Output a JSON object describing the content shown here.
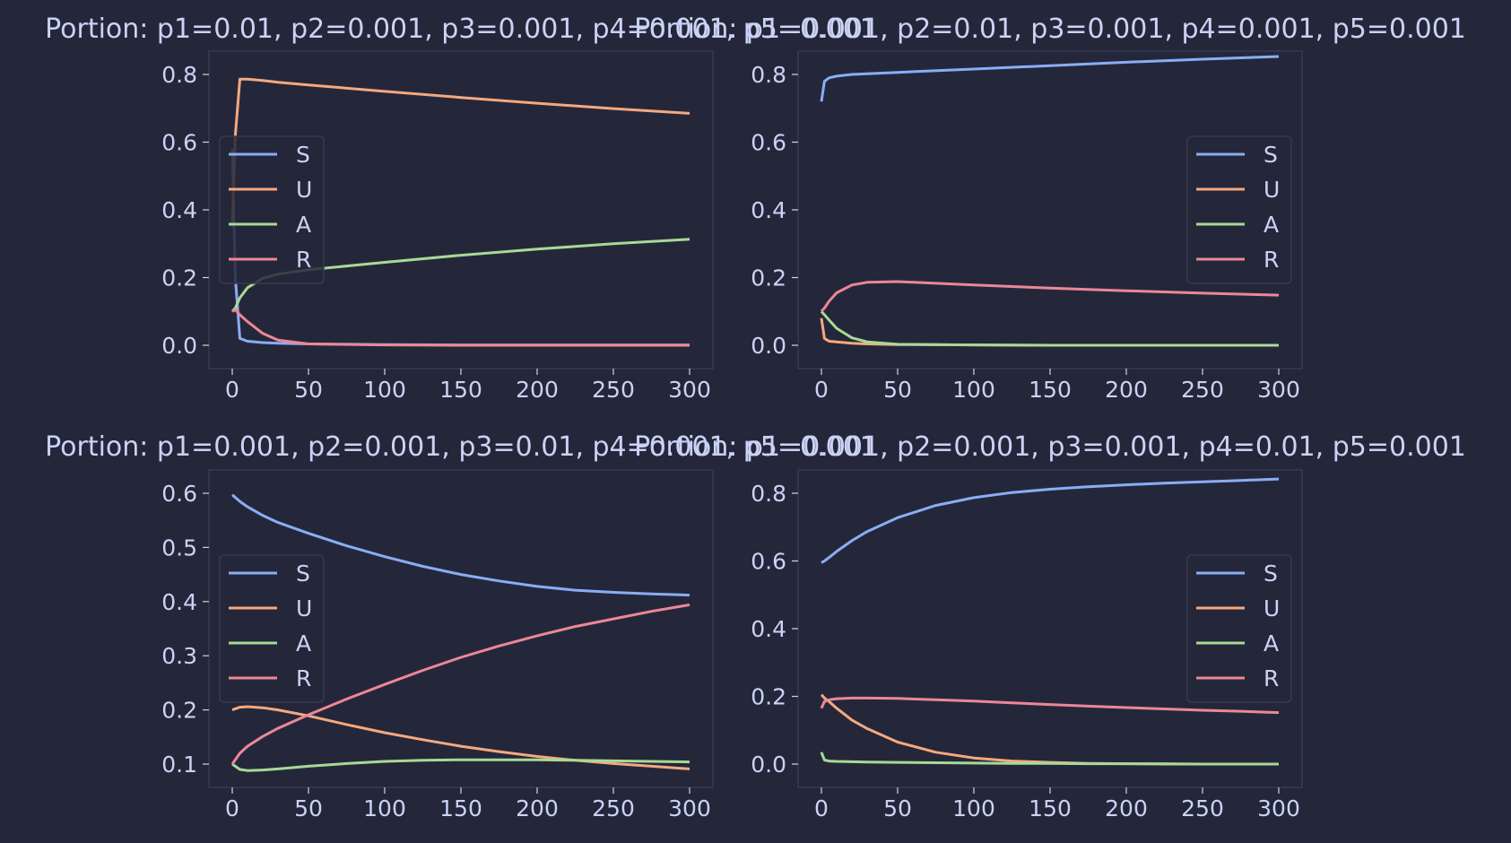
{
  "colors": {
    "background": "#24273a",
    "axes_edge": "#363a4f",
    "text": "#cad3f5",
    "S": "#8aadf4",
    "U": "#f5a97f",
    "A": "#a6da95",
    "R": "#ed8796"
  },
  "chart_data": [
    {
      "type": "line",
      "title": "Portion: p1=0.01, p2=0.001, p3=0.001, p4=0.001, p5=0.001",
      "xlabel": "",
      "ylabel": "",
      "xlim": [
        0,
        300
      ],
      "ylim": [
        0,
        0.8
      ],
      "xticks": [
        "0",
        "50",
        "100",
        "150",
        "200",
        "250",
        "300"
      ],
      "yticks": [
        "0.0",
        "0.2",
        "0.4",
        "0.6",
        "0.8"
      ],
      "legend": {
        "placement": "center-left",
        "entries": [
          "S",
          "U",
          "A",
          "R"
        ]
      },
      "x": [
        0,
        2,
        5,
        10,
        20,
        30,
        50,
        100,
        150,
        200,
        250,
        300
      ],
      "series": [
        {
          "name": "S",
          "values": [
            0.58,
            0.2,
            0.02,
            0.012,
            0.008,
            0.006,
            0.004,
            0.002,
            0.001,
            0.001,
            0.001,
            0.001
          ]
        },
        {
          "name": "U",
          "values": [
            0.35,
            0.62,
            0.786,
            0.786,
            0.782,
            0.777,
            0.769,
            0.75,
            0.732,
            0.715,
            0.699,
            0.685
          ]
        },
        {
          "name": "A",
          "values": [
            0.1,
            0.11,
            0.14,
            0.17,
            0.198,
            0.21,
            0.223,
            0.245,
            0.266,
            0.284,
            0.3,
            0.313
          ]
        },
        {
          "name": "R",
          "values": [
            0.1,
            0.105,
            0.09,
            0.07,
            0.035,
            0.015,
            0.004,
            0.001,
            0.0,
            0.0,
            0.0,
            0.0
          ]
        }
      ]
    },
    {
      "type": "line",
      "title": "Portion: p1=0.001, p2=0.01, p3=0.001, p4=0.001, p5=0.001",
      "xlabel": "",
      "ylabel": "",
      "xlim": [
        0,
        300
      ],
      "ylim": [
        0,
        0.8
      ],
      "xticks": [
        "0",
        "50",
        "100",
        "150",
        "200",
        "250",
        "300"
      ],
      "yticks": [
        "0.0",
        "0.2",
        "0.4",
        "0.6",
        "0.8"
      ],
      "legend": {
        "placement": "center-right",
        "entries": [
          "S",
          "U",
          "A",
          "R"
        ]
      },
      "x": [
        0,
        2,
        5,
        10,
        20,
        30,
        50,
        100,
        150,
        200,
        250,
        300
      ],
      "series": [
        {
          "name": "S",
          "values": [
            0.72,
            0.78,
            0.79,
            0.795,
            0.8,
            0.802,
            0.806,
            0.816,
            0.826,
            0.836,
            0.845,
            0.853
          ]
        },
        {
          "name": "U",
          "values": [
            0.08,
            0.02,
            0.012,
            0.01,
            0.006,
            0.004,
            0.002,
            0.001,
            0.0,
            0.0,
            0.0,
            0.0
          ]
        },
        {
          "name": "A",
          "values": [
            0.1,
            0.09,
            0.075,
            0.05,
            0.022,
            0.01,
            0.003,
            0.001,
            0.0,
            0.0,
            0.0,
            0.0
          ]
        },
        {
          "name": "R",
          "values": [
            0.1,
            0.11,
            0.13,
            0.155,
            0.178,
            0.186,
            0.188,
            0.178,
            0.169,
            0.161,
            0.154,
            0.148
          ]
        }
      ]
    },
    {
      "type": "line",
      "title": "Portion: p1=0.001, p2=0.001, p3=0.01, p4=0.001, p5=0.001",
      "xlabel": "",
      "ylabel": "",
      "xlim": [
        0,
        300
      ],
      "ylim": [
        0.1,
        0.6
      ],
      "xticks": [
        "0",
        "50",
        "100",
        "150",
        "200",
        "250",
        "300"
      ],
      "yticks": [
        "0.1",
        "0.2",
        "0.3",
        "0.4",
        "0.5",
        "0.6"
      ],
      "legend": {
        "placement": "center-left",
        "entries": [
          "S",
          "U",
          "A",
          "R"
        ]
      },
      "x": [
        0,
        5,
        10,
        20,
        30,
        50,
        75,
        100,
        125,
        150,
        175,
        200,
        225,
        250,
        275,
        300
      ],
      "series": [
        {
          "name": "S",
          "values": [
            0.597,
            0.585,
            0.575,
            0.559,
            0.546,
            0.526,
            0.503,
            0.483,
            0.465,
            0.45,
            0.438,
            0.428,
            0.421,
            0.417,
            0.414,
            0.412
          ]
        },
        {
          "name": "U",
          "values": [
            0.2,
            0.205,
            0.206,
            0.204,
            0.2,
            0.189,
            0.173,
            0.158,
            0.145,
            0.133,
            0.123,
            0.114,
            0.107,
            0.101,
            0.096,
            0.091
          ]
        },
        {
          "name": "A",
          "values": [
            0.1,
            0.09,
            0.088,
            0.089,
            0.091,
            0.096,
            0.101,
            0.105,
            0.107,
            0.108,
            0.108,
            0.108,
            0.107,
            0.106,
            0.105,
            0.104
          ]
        },
        {
          "name": "R",
          "values": [
            0.1,
            0.12,
            0.133,
            0.151,
            0.166,
            0.191,
            0.22,
            0.247,
            0.273,
            0.297,
            0.318,
            0.337,
            0.354,
            0.368,
            0.382,
            0.394
          ]
        }
      ]
    },
    {
      "type": "line",
      "title": "Portion: p1=0.001, p2=0.001, p3=0.001, p4=0.01, p5=0.001",
      "xlabel": "",
      "ylabel": "",
      "xlim": [
        0,
        300
      ],
      "ylim": [
        0,
        0.8
      ],
      "xticks": [
        "0",
        "50",
        "100",
        "150",
        "200",
        "250",
        "300"
      ],
      "yticks": [
        "0.0",
        "0.2",
        "0.4",
        "0.6",
        "0.8"
      ],
      "legend": {
        "placement": "center-right",
        "entries": [
          "S",
          "U",
          "A",
          "R"
        ]
      },
      "x": [
        0,
        2,
        5,
        10,
        20,
        30,
        50,
        75,
        100,
        125,
        150,
        175,
        200,
        225,
        250,
        275,
        300
      ],
      "series": [
        {
          "name": "S",
          "values": [
            0.595,
            0.6,
            0.61,
            0.628,
            0.66,
            0.687,
            0.728,
            0.764,
            0.787,
            0.802,
            0.812,
            0.819,
            0.825,
            0.83,
            0.834,
            0.838,
            0.842
          ]
        },
        {
          "name": "U",
          "values": [
            0.205,
            0.195,
            0.185,
            0.165,
            0.13,
            0.105,
            0.065,
            0.035,
            0.018,
            0.009,
            0.005,
            0.002,
            0.001,
            0.0,
            0.0,
            0.0,
            0.0
          ]
        },
        {
          "name": "A",
          "values": [
            0.035,
            0.012,
            0.009,
            0.008,
            0.007,
            0.006,
            0.005,
            0.004,
            0.003,
            0.002,
            0.002,
            0.001,
            0.001,
            0.001,
            0.0,
            0.0,
            0.0
          ]
        },
        {
          "name": "R",
          "values": [
            0.165,
            0.185,
            0.19,
            0.193,
            0.195,
            0.195,
            0.194,
            0.19,
            0.186,
            0.181,
            0.176,
            0.171,
            0.167,
            0.163,
            0.159,
            0.156,
            0.152
          ]
        }
      ]
    }
  ]
}
